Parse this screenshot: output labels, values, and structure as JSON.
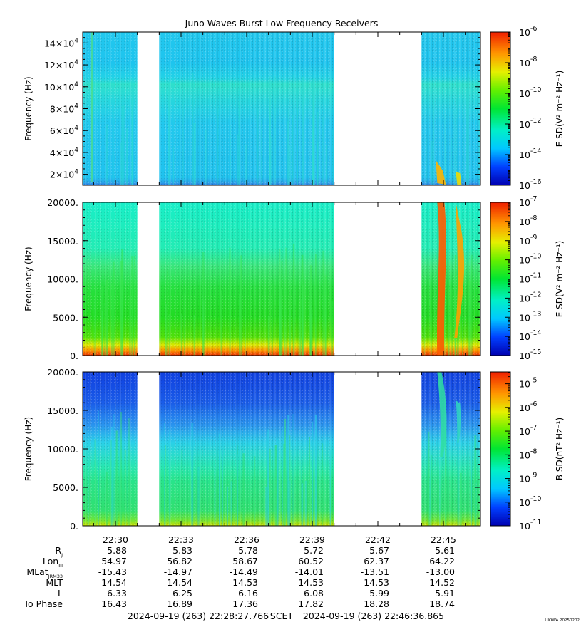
{
  "chart_data": {
    "type": "heatmap",
    "title": "Juno Waves Burst Low Frequency Receivers",
    "x_axis": {
      "ticks": [
        "22:30",
        "22:33",
        "22:36",
        "22:39",
        "22:42",
        "22:45"
      ]
    },
    "gaps": [
      "22:31 - 22:32",
      "22:40 - 22:44"
    ],
    "panels": [
      {
        "ylabel": "Frequency (Hz)",
        "ytick_labels": [
          {
            "v": 20000,
            "m": "2",
            "e": "4"
          },
          {
            "v": 40000,
            "m": "4",
            "e": "4"
          },
          {
            "v": 60000,
            "m": "6",
            "e": "4"
          },
          {
            "v": 80000,
            "m": "8",
            "e": "4"
          },
          {
            "v": 100000,
            "m": "10",
            "e": "4"
          },
          {
            "v": 120000,
            "m": "12",
            "e": "4"
          },
          {
            "v": 140000,
            "m": "14",
            "e": "4"
          }
        ],
        "ylim": [
          10000,
          150000
        ],
        "colorbar": {
          "label": "E SD(V² m⁻² Hz⁻¹)",
          "scale": "log",
          "tick_exponents": [
            "-6",
            "-8",
            "-10",
            "-12",
            "-14",
            "-16"
          ],
          "range": [
            -16,
            -6
          ]
        }
      },
      {
        "ylabel": "Frequency (Hz)",
        "ytick_labels": [
          "20000.",
          "15000.",
          "10000.",
          "5000.",
          "0."
        ],
        "ylim": [
          0,
          20000
        ],
        "colorbar": {
          "label": "E SD(V² m⁻² Hz⁻¹)",
          "scale": "log",
          "tick_exponents": [
            "-7",
            "-8",
            "-9",
            "-10",
            "-11",
            "-12",
            "-13",
            "-14",
            "-15"
          ],
          "range": [
            -15,
            -7
          ]
        }
      },
      {
        "ylabel": "Frequency (Hz)",
        "ytick_labels": [
          "20000.",
          "15000.",
          "10000.",
          "5000.",
          "0."
        ],
        "ylim": [
          0,
          20000
        ],
        "colorbar": {
          "label": "B SD(nT² Hz⁻¹)",
          "scale": "log",
          "tick_exponents": [
            "-5",
            "-6",
            "-7",
            "-8",
            "-9",
            "-10",
            "-11"
          ],
          "range": [
            -11,
            -4.5
          ]
        }
      }
    ],
    "ephemeris": {
      "rows": [
        {
          "label": "R",
          "sub": "J",
          "values": [
            "5.88",
            "5.83",
            "5.78",
            "5.72",
            "5.67",
            "5.61"
          ]
        },
        {
          "label": "Lon",
          "sub": "III",
          "values": [
            "54.97",
            "56.82",
            "58.67",
            "60.52",
            "62.37",
            "64.22"
          ]
        },
        {
          "label": "MLat",
          "sub": "JRM33",
          "values": [
            "-15.43",
            "-14.97",
            "-14.49",
            "-14.01",
            "-13.51",
            "-13.00"
          ]
        },
        {
          "label": "MLT",
          "sub": "",
          "values": [
            "14.54",
            "14.54",
            "14.53",
            "14.53",
            "14.53",
            "14.52"
          ]
        },
        {
          "label": "L",
          "sub": "",
          "values": [
            "6.33",
            "6.25",
            "6.16",
            "6.08",
            "5.99",
            "5.91"
          ]
        },
        {
          "label": "Io Phase",
          "sub": "",
          "values": [
            "16.43",
            "16.89",
            "17.36",
            "17.82",
            "18.28",
            "18.74"
          ]
        }
      ]
    },
    "time_range": {
      "start": "2024-09-19 (263) 22:28:27.766",
      "mid_label": "SCET",
      "end": "2024-09-19 (263) 22:46:36.865"
    },
    "credit": "UIOWA 20250202"
  }
}
